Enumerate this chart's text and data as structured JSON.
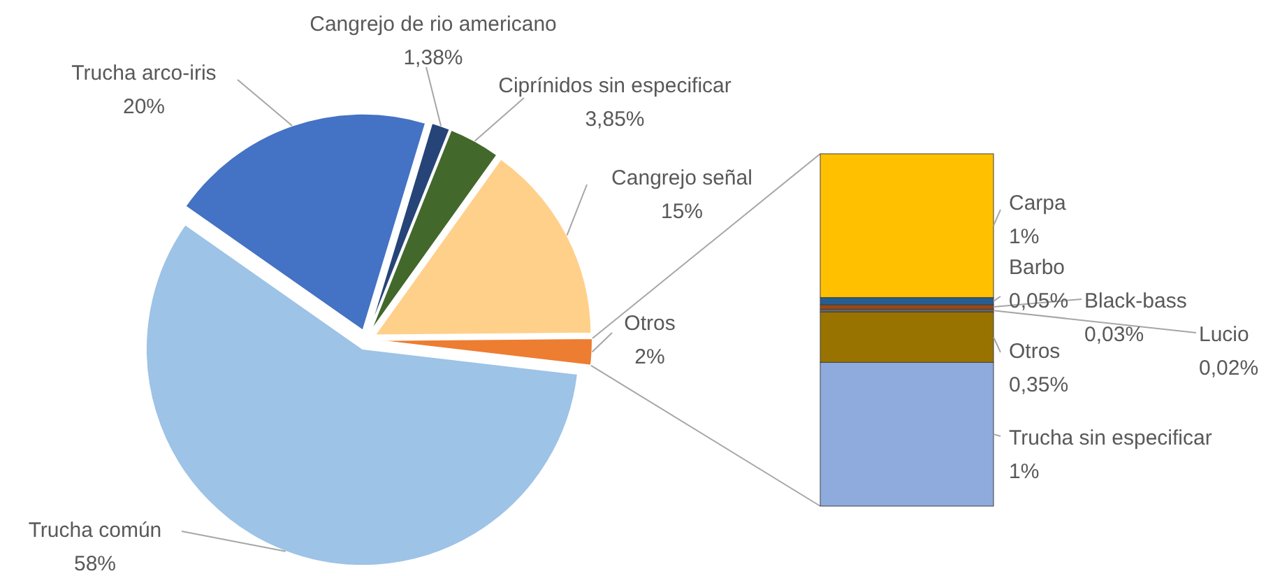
{
  "chart_data": [
    {
      "type": "pie",
      "categories": [
        "Trucha arco-iris",
        "Cangrejo de rio americano",
        "Ciprínidos sin especificar",
        "Cangrejo señal",
        "Otros",
        "Trucha común"
      ],
      "values": [
        20,
        1.38,
        3.85,
        15,
        2,
        58
      ],
      "colors": [
        "#4472c4",
        "#264478",
        "#43682b",
        "#ffd08a",
        "#ed7d31",
        "#9dc3e6"
      ],
      "value_labels": [
        "20%",
        "1,38%",
        "3,85%",
        "15%",
        "2%",
        "58%"
      ]
    },
    {
      "type": "bar",
      "stacked": true,
      "categories": [
        null
      ],
      "series": [
        {
          "name": "Trucha sin especificar",
          "color": "#8faadc",
          "values": [
            1
          ],
          "value_labels": [
            "1%"
          ]
        },
        {
          "name": "Otros",
          "color": "#997300",
          "values": [
            0.35
          ],
          "value_labels": [
            "0,35%"
          ]
        },
        {
          "name": "Lucio",
          "color": "#636363",
          "values": [
            0.02
          ],
          "value_labels": [
            "0,02%"
          ]
        },
        {
          "name": "Black-bass",
          "color": "#9e480e",
          "values": [
            0.03
          ],
          "value_labels": [
            "0,03%"
          ]
        },
        {
          "name": "Barbo",
          "color": "#255e91",
          "values": [
            0.05
          ],
          "value_labels": [
            "0,05%"
          ]
        },
        {
          "name": "Carpa",
          "color": "#ffc000",
          "values": [
            1
          ],
          "value_labels": [
            "1%"
          ]
        }
      ]
    }
  ]
}
